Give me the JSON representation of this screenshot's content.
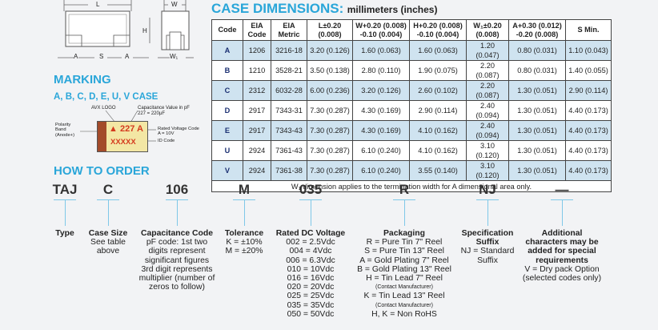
{
  "diagram": {
    "top_labels": {
      "length": "L",
      "width": "W"
    },
    "side_labels": {
      "height": "H"
    },
    "bottom_labels": [
      "A",
      "S",
      "A",
      "W₁"
    ]
  },
  "case_dimensions": {
    "title": "CASE DIMENSIONS:",
    "unit": "millimeters (inches)",
    "headers": [
      "Code",
      "EIA Code",
      "EIA Metric",
      "L±0.20 (0.008)",
      "W+0.20 (0.008) -0.10 (0.004)",
      "H+0.20 (0.008) -0.10 (0.004)",
      "W₁±0.20 (0.008)",
      "A+0.30 (0.012) -0.20 (0.008)",
      "S Min."
    ],
    "rows": [
      [
        "A",
        "1206",
        "3216-18",
        "3.20 (0.126)",
        "1.60 (0.063)",
        "1.60 (0.063)",
        "1.20 (0.047)",
        "0.80 (0.031)",
        "1.10 (0.043)"
      ],
      [
        "B",
        "1210",
        "3528-21",
        "3.50 (0.138)",
        "2.80 (0.110)",
        "1.90 (0.075)",
        "2.20 (0.087)",
        "0.80 (0.031)",
        "1.40 (0.055)"
      ],
      [
        "C",
        "2312",
        "6032-28",
        "6.00 (0.236)",
        "3.20 (0.126)",
        "2.60 (0.102)",
        "2.20 (0.087)",
        "1.30 (0.051)",
        "2.90 (0.114)"
      ],
      [
        "D",
        "2917",
        "7343-31",
        "7.30 (0.287)",
        "4.30 (0.169)",
        "2.90 (0.114)",
        "2.40 (0.094)",
        "1.30 (0.051)",
        "4.40 (0.173)"
      ],
      [
        "E",
        "2917",
        "7343-43",
        "7.30 (0.287)",
        "4.30 (0.169)",
        "4.10 (0.162)",
        "2.40 (0.094)",
        "1.30 (0.051)",
        "4.40 (0.173)"
      ],
      [
        "U",
        "2924",
        "7361-43",
        "7.30 (0.287)",
        "6.10 (0.240)",
        "4.10 (0.162)",
        "3.10 (0.120)",
        "1.30 (0.051)",
        "4.40 (0.173)"
      ],
      [
        "V",
        "2924",
        "7361-38",
        "7.30 (0.287)",
        "6.10 (0.240)",
        "3.55 (0.140)",
        "3.10 (0.120)",
        "1.30 (0.051)",
        "4.40 (0.173)"
      ]
    ],
    "note": "W₁ dimension applies to the termination width for A dimensional area only."
  },
  "marking": {
    "title": "MARKING",
    "subtitle": "A, B, C, D, E, U, V CASE",
    "avx_logo": "AVX LOGO",
    "cap_value_note": "Capacitance Value in pF",
    "cap_value_example": "227 = 220μF",
    "chip_marking": "227 A",
    "chip_logo_glyph": "▲",
    "chip_code": "XXXXX",
    "polarity": [
      "Polarity",
      "Band",
      "(Anode+)"
    ],
    "rated_voltage": [
      "Rated Voltage Code",
      "A = 10V"
    ],
    "id_code": "ID Code"
  },
  "how_to_order": {
    "title": "HOW TO ORDER",
    "codes": [
      "TAJ",
      "C",
      "106",
      "M",
      "035",
      "R",
      "NJ",
      "—"
    ],
    "type": {
      "head": "Type"
    },
    "case_size": {
      "head": "Case Size",
      "lines": [
        "See table",
        "above"
      ]
    },
    "capacitance": {
      "head": "Capacitance Code",
      "lines": [
        "pF code: 1st two",
        "digits represent",
        "significant figures",
        "3rd digit represents",
        "multiplier (number of",
        "zeros to follow)"
      ]
    },
    "tolerance": {
      "head": "Tolerance",
      "lines": [
        "K = ±10%",
        "M = ±20%"
      ]
    },
    "voltage": {
      "head": "Rated DC Voltage",
      "lines": [
        "002 = 2.5Vdc",
        "004 = 4Vdc",
        "006 = 6.3Vdc",
        "010 = 10Vdc",
        "016 = 16Vdc",
        "020 = 20Vdc",
        "025 = 25Vdc",
        "035 = 35Vdc",
        "050 = 50Vdc"
      ]
    },
    "packaging": {
      "head": "Packaging",
      "lines": [
        "R = Pure Tin 7\" Reel",
        "S = Pure Tin 13\" Reel",
        "A = Gold Plating 7\" Reel",
        "B = Gold Plating 13\" Reel",
        "H = Tin Lead 7\" Reel",
        "(Contact Manufacturer)",
        "K = Tin Lead 13\" Reel",
        "(Contact Manufacturer)",
        "H, K = Non RoHS"
      ]
    },
    "spec_suffix": {
      "head": [
        "Specification",
        "Suffix"
      ],
      "lines": [
        "NJ = Standard",
        "Suffix"
      ]
    },
    "additional": {
      "head": [
        "Additional",
        "characters may be",
        "added for special",
        "requirements"
      ],
      "lines": [
        "V = Dry pack Option",
        "(selected codes only)"
      ]
    }
  },
  "colors": {
    "accent": "#2aa6d9",
    "table_shade": "#cfe3f0",
    "chip_body": "#f3e7a4",
    "band": "#a34b2a",
    "marking_red": "#d43a1e"
  }
}
